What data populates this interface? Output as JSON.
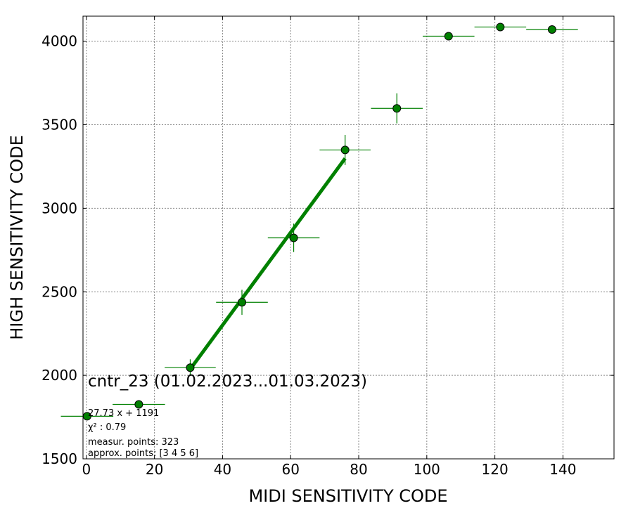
{
  "chart_data": {
    "type": "scatter",
    "xlabel": "MIDI SENSITIVITY CODE",
    "ylabel": "HIGH SENSITIVITY CODE",
    "xlim": [
      -1,
      155
    ],
    "ylim": [
      1500,
      4150
    ],
    "xticks": [
      0,
      20,
      40,
      60,
      80,
      100,
      120,
      140
    ],
    "yticks": [
      1500,
      2000,
      2500,
      3000,
      3500,
      4000
    ],
    "grid": true,
    "colors": {
      "points": "#008000",
      "fit": "#008000",
      "edge": "#000000"
    },
    "points": [
      {
        "x": 0.2,
        "y": 1755,
        "xerr": 7.7,
        "yerr": 10
      },
      {
        "x": 15.4,
        "y": 1826,
        "xerr": 7.7,
        "yerr": 10
      },
      {
        "x": 30.5,
        "y": 2046,
        "xerr": 7.5,
        "yerr": 50
      },
      {
        "x": 45.7,
        "y": 2437,
        "xerr": 7.6,
        "yerr": 75
      },
      {
        "x": 60.9,
        "y": 2823,
        "xerr": 7.6,
        "yerr": 85
      },
      {
        "x": 76.0,
        "y": 3349,
        "xerr": 7.5,
        "yerr": 90
      },
      {
        "x": 91.2,
        "y": 3598,
        "xerr": 7.6,
        "yerr": 90
      },
      {
        "x": 106.4,
        "y": 4030,
        "xerr": 7.6,
        "yerr": 10
      },
      {
        "x": 121.6,
        "y": 4085,
        "xerr": 7.6,
        "yerr": 10
      },
      {
        "x": 136.8,
        "y": 4070,
        "xerr": 7.6,
        "yerr": 10
      }
    ],
    "fit": {
      "slope": 27.73,
      "intercept": 1191,
      "x_range": [
        30.5,
        76.0
      ]
    },
    "annotations": {
      "title": "cntr_23 (01.02.2023...01.03.2023)",
      "fit_label": "27.73 x + 1191",
      "chi2_label": "χ² : 0.79",
      "measur_label": "measur. points: 323",
      "approx_label": "approx. points: [3 4 5 6]"
    }
  }
}
